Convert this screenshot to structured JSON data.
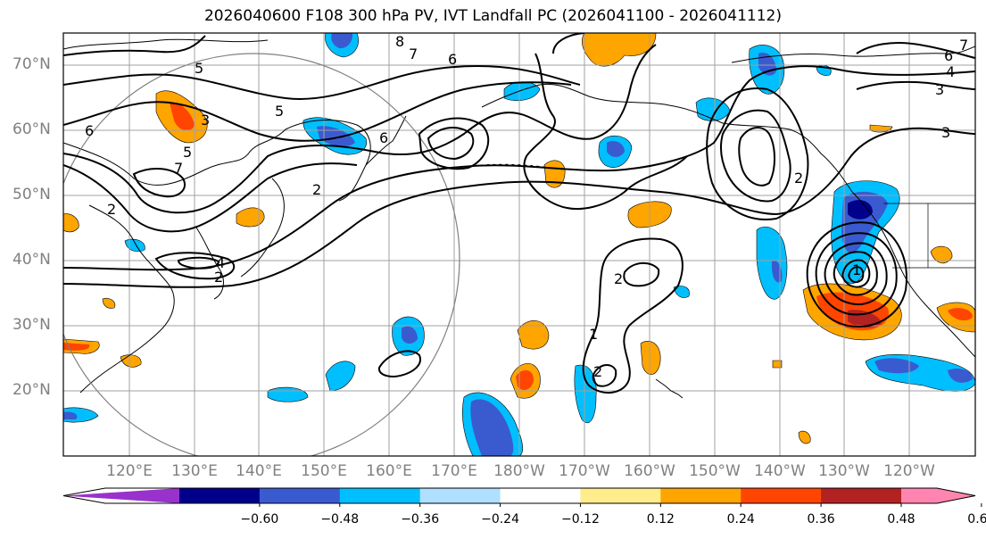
{
  "title": "2026040600 F108 300 hPa PV, IVT Landfall PC (2026041100 - 2026041112)",
  "lat_labels": [
    "70°N",
    "60°N",
    "50°N",
    "40°N",
    "30°N",
    "20°N"
  ],
  "lon_labels": [
    "120°E",
    "130°E",
    "140°E",
    "150°E",
    "160°E",
    "170°E",
    "180°W",
    "170°W",
    "160°W",
    "150°W",
    "140°W",
    "130°W",
    "120°W"
  ],
  "contour_labels": [
    "8",
    "7",
    "6",
    "5",
    "4",
    "3",
    "2",
    "1",
    "6",
    "5",
    "3",
    "7",
    "6",
    "5",
    "2",
    "7",
    "6",
    "3",
    "4",
    "2",
    "2",
    "1",
    "2",
    "2"
  ],
  "colorbar": {
    "colors": [
      "#9932cc",
      "#00008b",
      "#3a5bd0",
      "#00bfff",
      "#b0e0ff",
      "#ffffff",
      "#ffec8b",
      "#ffa500",
      "#ff4500",
      "#b22222",
      "#ff85b0"
    ],
    "tick_labels": [
      "−0.60",
      "−0.48",
      "−0.36",
      "−0.24",
      "−0.12",
      "0.12",
      "0.24",
      "0.36",
      "0.48",
      "0.60"
    ]
  },
  "colors": {
    "coast": "#000000",
    "grid": "#a0a0a0",
    "contour": "#000000",
    "circle": "#808080",
    "neg_strong": "#00008b",
    "neg_mid": "#3a5bd0",
    "neg_weak": "#00bfff",
    "pos_weak": "#ffa500",
    "pos_mid": "#ff4500",
    "pos_strong": "#b22222"
  }
}
